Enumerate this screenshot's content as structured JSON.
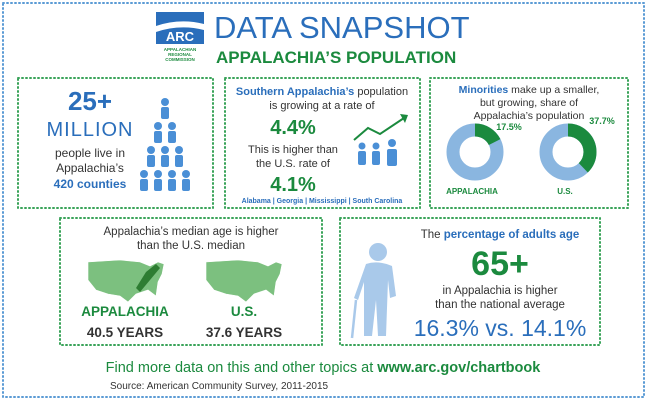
{
  "header": {
    "logo": "ARC",
    "logo_caption": [
      "APPALACHIAN",
      "REGIONAL",
      "COMMISSION"
    ],
    "title": "DATA SNAPSHOT",
    "subtitle": "APPALACHIA’S POPULATION"
  },
  "population": {
    "number": "25+",
    "unit": "MILLION",
    "lines": [
      "people live in",
      "Appalachia’s"
    ],
    "counties": "420 counties"
  },
  "growth": {
    "line1": {
      "bold": "Southern Appalachia’s",
      "text": " population"
    },
    "line2": "is growing at a rate of",
    "rate": "4.4%",
    "compare": [
      "This is higher than",
      "the U.S. rate of"
    ],
    "us_rate": "4.1%",
    "states": "Alabama | Georgia | Mississippi | South Carolina"
  },
  "minorities": {
    "line1": {
      "bold": "Minorities",
      "text": " make up a smaller,"
    },
    "lines": [
      "but growing, share of",
      "Appalachia’s population"
    ],
    "donuts": [
      {
        "name": "APPALACHIA",
        "value": 17.5,
        "value_label": "17.5%"
      },
      {
        "name": "U.S.",
        "value": 37.7,
        "value_label": "37.7%"
      }
    ]
  },
  "median_age": {
    "lines": [
      "Appalachia’s median age is higher",
      "than the U.S. median"
    ],
    "regions": [
      {
        "name": "APPALACHIA",
        "age": "40.5 YEARS"
      },
      {
        "name": "U.S.",
        "age": "37.6 YEARS"
      }
    ]
  },
  "seniors": {
    "line1": {
      "text": "The ",
      "bold": "percentage of adults age"
    },
    "age": "65+",
    "lines": [
      "in Appalachia is higher",
      "than the national average"
    ],
    "comparison": "16.3% vs. 14.1%"
  },
  "footer": {
    "text": "Find more data on this and other topics at ",
    "link": "www.arc.gov/chartbook",
    "source": "Source: American Community Survey, 2011-2015"
  }
}
